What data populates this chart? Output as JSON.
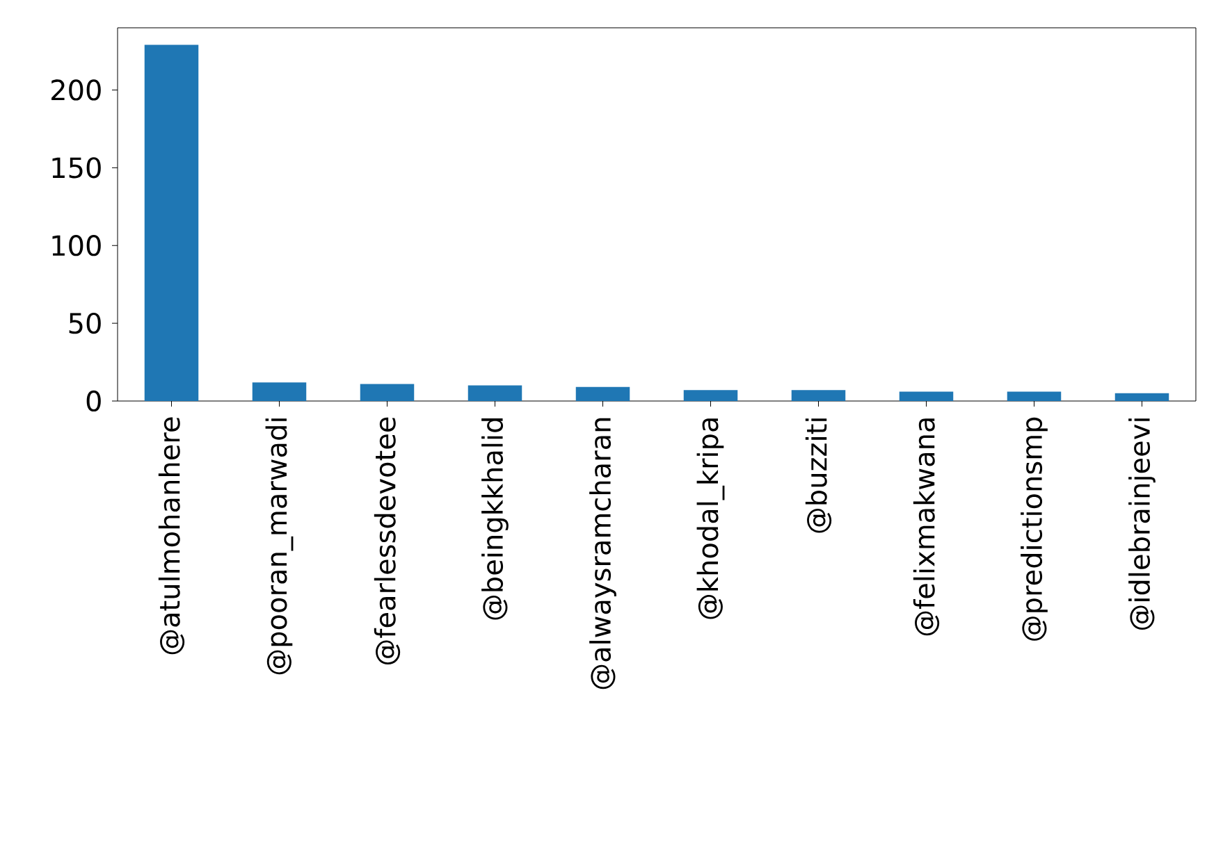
{
  "chart_data": {
    "type": "bar",
    "categories": [
      "@atulmohanhere",
      "@pooran_marwadi",
      "@fearlessdevotee",
      "@beingkkhalid",
      "@alwaysramcharan",
      "@khodal_kripa",
      "@buzziti",
      "@felixmakwana",
      "@predictionsmp",
      "@idlebrainjeevi"
    ],
    "values": [
      229,
      12,
      11,
      10,
      9,
      7,
      7,
      6,
      6,
      5
    ],
    "color": "#1f77b4",
    "ylim": [
      0,
      240
    ],
    "yticks": [
      0,
      50,
      100,
      150,
      200
    ]
  }
}
